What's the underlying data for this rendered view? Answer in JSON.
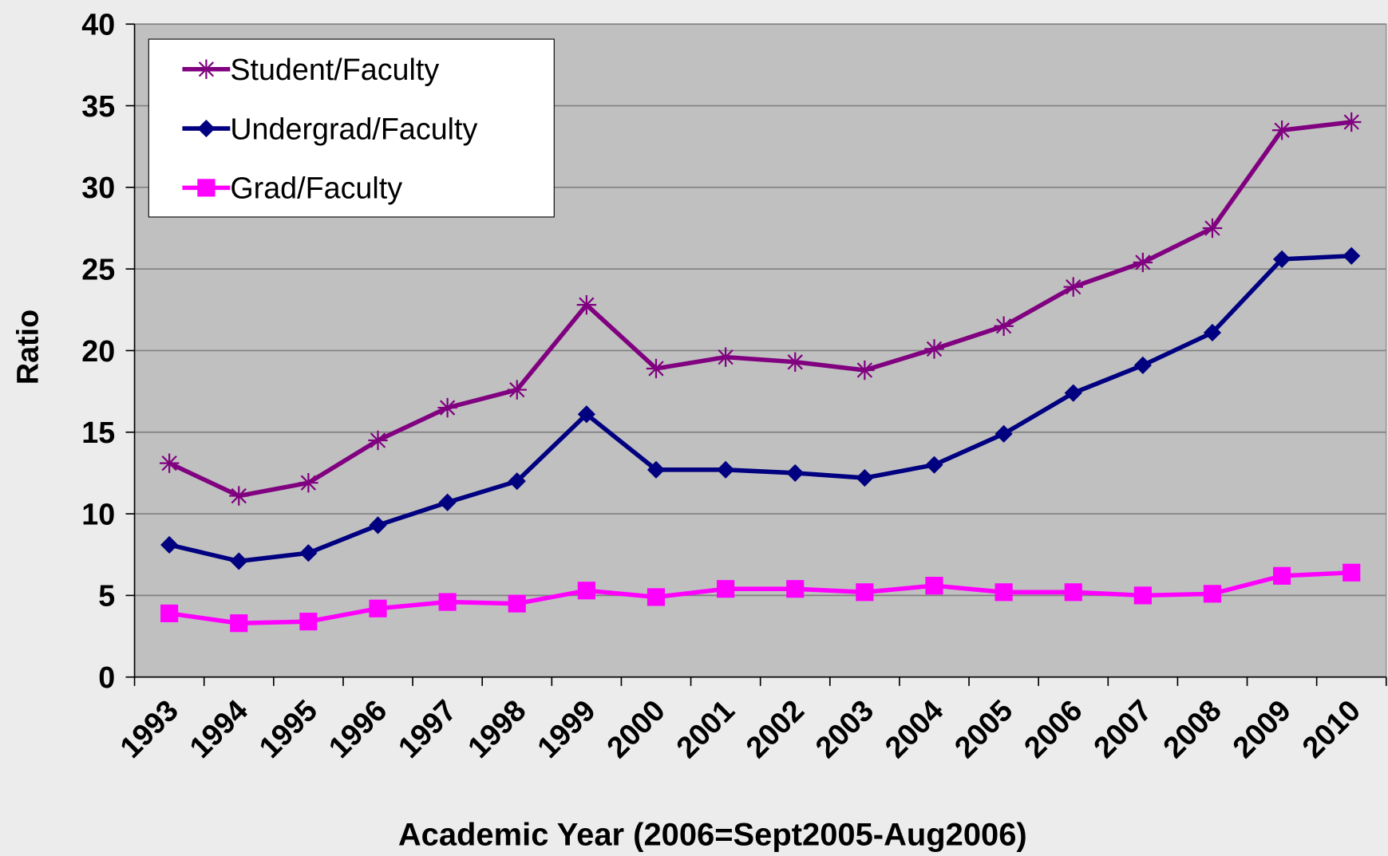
{
  "chart_data": {
    "type": "line",
    "x_label": "Academic Year (2006=Sept2005-Aug2006)",
    "y_label": "Ratio",
    "categories": [
      "1993",
      "1994",
      "1995",
      "1996",
      "1997",
      "1998",
      "1999",
      "2000",
      "2001",
      "2002",
      "2003",
      "2004",
      "2005",
      "2006",
      "2007",
      "2008",
      "2009",
      "2010"
    ],
    "series": [
      {
        "name": "Student/Faculty",
        "color": "#800080",
        "marker": "star",
        "values": [
          13.1,
          11.1,
          11.9,
          14.5,
          16.5,
          17.6,
          22.8,
          18.9,
          19.6,
          19.3,
          18.8,
          20.1,
          21.5,
          23.9,
          25.4,
          27.5,
          33.5,
          34.0
        ]
      },
      {
        "name": "Undergrad/Faculty",
        "color": "#000080",
        "marker": "diamond",
        "values": [
          8.1,
          7.1,
          7.6,
          9.3,
          10.7,
          12.0,
          16.1,
          12.7,
          12.7,
          12.5,
          12.2,
          13.0,
          14.9,
          17.4,
          19.1,
          21.1,
          25.6,
          25.8
        ]
      },
      {
        "name": "Grad/Faculty",
        "color": "#ff00ff",
        "marker": "square",
        "values": [
          3.9,
          3.3,
          3.4,
          4.2,
          4.6,
          4.5,
          5.3,
          4.9,
          5.4,
          5.4,
          5.2,
          5.6,
          5.2,
          5.2,
          5.0,
          5.1,
          6.2,
          6.4
        ]
      }
    ],
    "ylim": [
      0,
      40
    ],
    "yticks": [
      0,
      5,
      10,
      15,
      20,
      25,
      30,
      35,
      40
    ],
    "grid": true,
    "legend": "upper left"
  }
}
